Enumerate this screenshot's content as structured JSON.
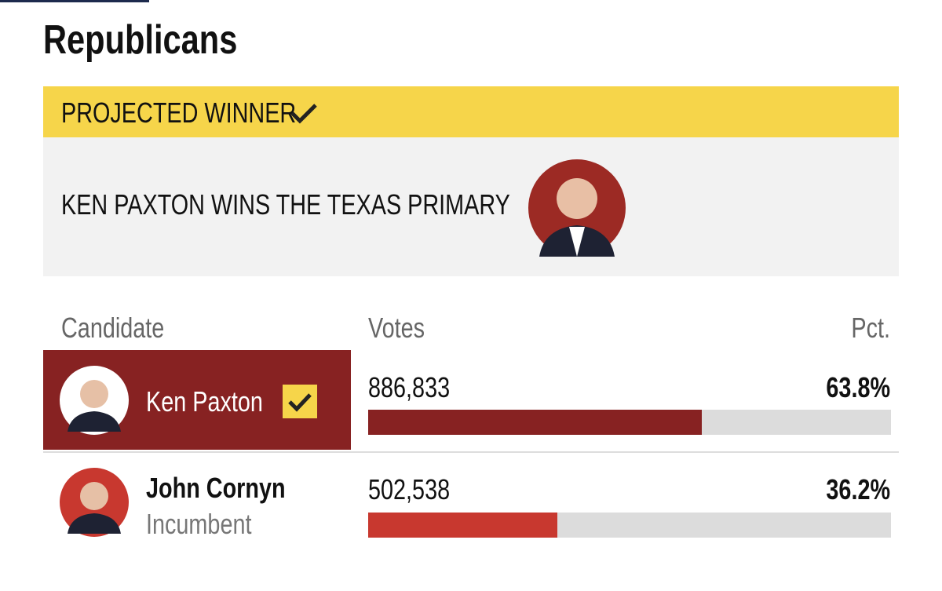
{
  "header": {
    "title": "Republicans"
  },
  "banner": {
    "label": "PROJECTED WINNER",
    "headline": "KEN PAXTON WINS THE TEXAS PRIMARY"
  },
  "table": {
    "columns": [
      "Candidate",
      "Votes",
      "Pct."
    ],
    "rows": [
      {
        "name": "Ken Paxton",
        "votes": "886,833",
        "pct": {
          "value": 63.8,
          "label": "63.8%"
        },
        "winner": true,
        "color": "#872222"
      },
      {
        "name": "John Cornyn",
        "note": "Incumbent",
        "votes": "502,538",
        "pct": {
          "value": 36.2,
          "label": "36.2%"
        },
        "winner": false,
        "color": "#c8382f"
      }
    ]
  }
}
